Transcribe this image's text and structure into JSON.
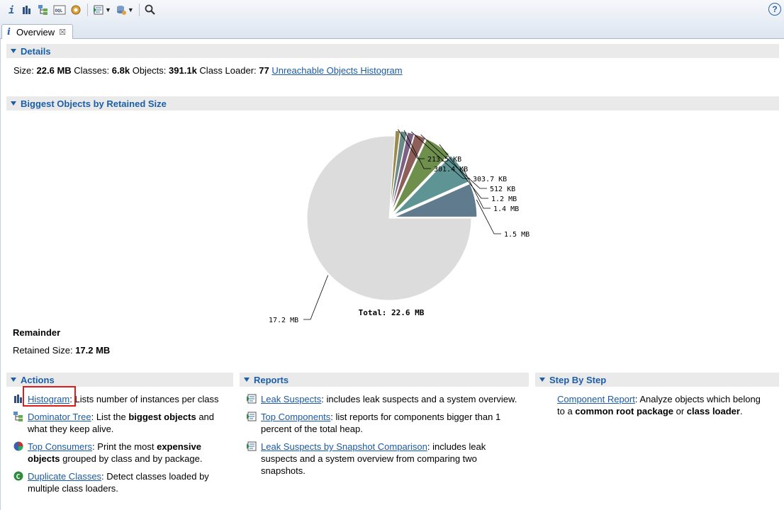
{
  "toolbar": {
    "buttons": [
      "info-icon",
      "histogram-icon",
      "dominator-tree-icon",
      "oql-icon",
      "heap-dump-overview-icon",
      "reports-icon",
      "query-browser-icon",
      "search-icon"
    ],
    "oql_text": "OQL",
    "help": "?"
  },
  "tab": {
    "icon_text": "i",
    "label": "Overview",
    "close": "☒"
  },
  "details": {
    "title": "Details",
    "size_label": "Size:",
    "size": "22.6 MB",
    "classes_label": "Classes:",
    "classes": "6.8k",
    "objects_label": "Objects:",
    "objects": "391.1k",
    "loader_label": "Class Loader:",
    "loader": "77",
    "unreachable_link": "Unreachable Objects Histogram"
  },
  "biggest": {
    "title": "Biggest Objects by Retained Size"
  },
  "chart_data": {
    "type": "pie",
    "unit": "MB",
    "slices": [
      {
        "label": "1.5 MB",
        "value": 1.5,
        "color": "#5f7b8d"
      },
      {
        "label": "1.4 MB",
        "value": 1.4,
        "color": "#5e9594"
      },
      {
        "label": "1.2 MB",
        "value": 1.2,
        "color": "#6f8f4d"
      },
      {
        "label": "512 KB",
        "value": 0.5,
        "color": "#8c5f59"
      },
      {
        "label": "303.7 KB",
        "value": 0.3,
        "color": "#7c6184"
      },
      {
        "label": "301.4 KB",
        "value": 0.29,
        "color": "#6a8a86"
      },
      {
        "label": "213.5 KB",
        "value": 0.21,
        "color": "#9a8a4c"
      },
      {
        "label": "17.2 MB",
        "value": 17.2,
        "color": "#dcdcdc"
      }
    ],
    "total": "Total: 22.6 MB"
  },
  "remainder": {
    "title": "Remainder",
    "retained_label": "Retained Size:",
    "retained": "17.2 MB"
  },
  "actions": {
    "title": "Actions",
    "items": [
      {
        "link": "Histogram",
        "rest1": ": Lists number of instances per class"
      },
      {
        "link": "Dominator Tree",
        "rest1": ": List the ",
        "bold": "biggest objects",
        "rest2": " and",
        "line2": "what they keep alive."
      },
      {
        "link": "Top Consumers",
        "rest1": ": Print the most ",
        "bold": "expensive",
        "bold2": "objects",
        "rest2": " grouped by class and by package."
      },
      {
        "link": "Duplicate Classes",
        "rest1": ": Detect classes loaded by",
        "line2": "multiple class loaders."
      }
    ]
  },
  "reports": {
    "title": "Reports",
    "items": [
      {
        "link": "Leak Suspects",
        "rest1": ": includes leak suspects and a system overview."
      },
      {
        "link": "Top Components",
        "rest1": ": list reports for components bigger than 1",
        "line2": "percent of the total heap."
      },
      {
        "link": "Leak Suspects by Snapshot Comparison",
        "rest1": ": includes leak",
        "line2": "suspects and a system overview from comparing two",
        "line3": "snapshots."
      }
    ]
  },
  "steps": {
    "title": "Step By Step",
    "link": "Component Report",
    "rest1": ": Analyze objects which belong",
    "l2a": "to a ",
    "l2b": "common root package",
    "l2c": " or ",
    "l2d": "class loader",
    "l2e": "."
  }
}
